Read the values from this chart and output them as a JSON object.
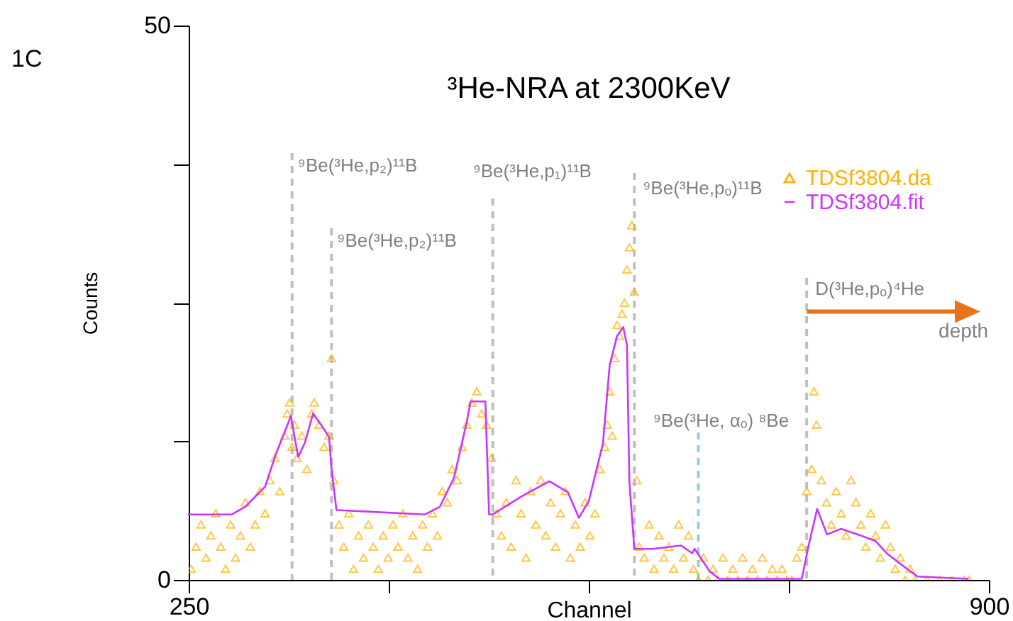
{
  "chart_data": {
    "type": "scatter",
    "title": "³He-NRA at 2300KeV",
    "xlabel": "Channel",
    "ylabel": "Counts",
    "xlim": [
      250,
      900
    ],
    "xticks": [
      250,
      {
        "value": 412.5,
        "label": null
      },
      {
        "value": 575,
        "label": null
      },
      {
        "value": 737.5,
        "label": null
      },
      900
    ],
    "ylim": [
      0,
      50
    ],
    "yticks": [
      0,
      {
        "value": 12.5,
        "label": null
      },
      {
        "value": 25,
        "label": null
      },
      {
        "value": 37.5,
        "label": null
      },
      50
    ],
    "grid": false,
    "legend": "top right",
    "annotations": [
      "1C",
      {
        "text": "depth",
        "x": 752,
        "y": 24.2
      }
    ],
    "ref_lines": [
      {
        "axis": "x",
        "value": 334,
        "label": "⁹Be(³He,p₂)¹¹B",
        "color": "#bfbfbf",
        "line_style": "dashed"
      },
      {
        "axis": "x",
        "value": 366,
        "label": "⁹Be(³He,p₂)¹¹B",
        "color": "#bfbfbf",
        "line_style": "dashed"
      },
      {
        "axis": "x",
        "value": 497,
        "label": "⁹Be(³He,p₁)¹¹B",
        "color": "#bfbfbf",
        "line_style": "dashed"
      },
      {
        "axis": "x",
        "value": 612,
        "label": "⁹Be(³He,pₒ)¹¹B",
        "color": "#bfbfbf",
        "line_style": "dashed"
      },
      {
        "axis": "x",
        "value": 664,
        "label": "⁹Be(³He, αₒ) ⁸Be",
        "color": "#8fd0e6",
        "line_style": "dashed"
      },
      {
        "axis": "x",
        "value": 752,
        "label": "D(³He,pₒ)⁴He",
        "color": "#bfbfbf",
        "line_style": "dashed"
      }
    ],
    "series": [
      {
        "name": "TDSf3804.da",
        "type": "scatter",
        "marker": "triangle",
        "color": "#ffb000",
        "x": [
          252,
          256,
          260,
          264,
          268,
          272,
          276,
          280,
          284,
          288,
          292,
          296,
          300,
          304,
          308,
          312,
          316,
          320,
          324,
          328,
          330,
          332,
          334,
          336,
          338,
          342,
          346,
          350,
          352,
          356,
          360,
          364,
          366,
          368,
          372,
          376,
          380,
          384,
          388,
          392,
          396,
          400,
          404,
          408,
          412,
          416,
          420,
          424,
          428,
          432,
          436,
          440,
          444,
          448,
          452,
          456,
          460,
          464,
          468,
          472,
          476,
          480,
          484,
          488,
          492,
          496,
          500,
          504,
          508,
          512,
          516,
          520,
          524,
          528,
          532,
          536,
          540,
          544,
          548,
          552,
          556,
          560,
          564,
          568,
          572,
          576,
          580,
          584,
          588,
          590,
          592,
          594,
          596,
          598,
          600,
          602,
          604,
          606,
          608,
          610,
          612,
          614,
          616,
          620,
          624,
          628,
          632,
          636,
          640,
          644,
          648,
          652,
          656,
          660,
          664,
          668,
          672,
          676,
          680,
          684,
          688,
          692,
          696,
          700,
          704,
          708,
          712,
          716,
          720,
          724,
          728,
          732,
          736,
          740,
          744,
          748,
          752,
          756,
          758,
          760,
          764,
          768,
          772,
          776,
          780,
          784,
          788,
          792,
          796,
          800,
          804,
          808,
          812,
          816,
          820,
          824,
          828,
          832,
          836,
          840,
          850,
          860,
          870,
          880,
          884
        ],
        "values": [
          1,
          3,
          5,
          2,
          4,
          6,
          3,
          1,
          5,
          2,
          4,
          7,
          3,
          5,
          8,
          6,
          9,
          11,
          8,
          13,
          15,
          16,
          12,
          14,
          11,
          13,
          10,
          15,
          16,
          14,
          12,
          13,
          20,
          9,
          5,
          3,
          6,
          1,
          4,
          2,
          5,
          3,
          1,
          4,
          2,
          5,
          3,
          6,
          2,
          4,
          1,
          5,
          3,
          6,
          4,
          8,
          7,
          10,
          9,
          12,
          14,
          16,
          17,
          15,
          14,
          11,
          6,
          4,
          7,
          3,
          9,
          6,
          2,
          8,
          5,
          9,
          4,
          7,
          3,
          6,
          8,
          2,
          5,
          3,
          7,
          4,
          6,
          10,
          12,
          14,
          17,
          13,
          20,
          23,
          22,
          24,
          25,
          28,
          30,
          32,
          26,
          9,
          3,
          2,
          5,
          1,
          4,
          2,
          3,
          1,
          5,
          2,
          4,
          1,
          0,
          2,
          0,
          1,
          0,
          2,
          0,
          1,
          0,
          2,
          0,
          1,
          0,
          2,
          0,
          1,
          0,
          1,
          0,
          0,
          2,
          3,
          8,
          10,
          17,
          14,
          9,
          7,
          5,
          8,
          6,
          4,
          9,
          7,
          5,
          3,
          6,
          4,
          2,
          5,
          3,
          1,
          2,
          0,
          1,
          0,
          0,
          0,
          0,
          0,
          0
        ]
      },
      {
        "name": "TDSf3804.fit",
        "type": "line",
        "marker": "none",
        "color": "#cc33ff",
        "x": [
          250,
          285,
          296,
          312,
          321,
          330,
          333,
          335,
          339,
          344.5,
          351,
          358,
          364,
          366,
          370,
          442,
          454,
          465.5,
          476,
          479,
          491,
          494,
          497,
          520,
          543,
          558,
          567,
          575,
          586.5,
          592,
          598,
          603,
          606,
          608,
          612,
          627,
          650,
          659,
          661,
          673,
          681,
          748,
          754,
          760.5,
          768.5,
          780,
          796,
          808,
          817,
          831,
          842,
          883
        ],
        "values": [
          5.9,
          5.9,
          6.6,
          8.4,
          11.4,
          13.9,
          14.8,
          13.5,
          11.1,
          12.4,
          15.0,
          13.9,
          12.9,
          10.1,
          6.3,
          5.9,
          6.6,
          9.2,
          14.3,
          16.1,
          16.1,
          5.9,
          5.9,
          7.5,
          8.9,
          7.9,
          5.6,
          7.1,
          12.3,
          19.4,
          22.0,
          22.8,
          21.2,
          8.8,
          2.8,
          2.8,
          3.1,
          2.4,
          2.8,
          0.8,
          0.1,
          0.1,
          3.3,
          6.4,
          4.1,
          4.6,
          4.0,
          3.5,
          2.4,
          1.2,
          0.3,
          0.1
        ]
      }
    ]
  }
}
